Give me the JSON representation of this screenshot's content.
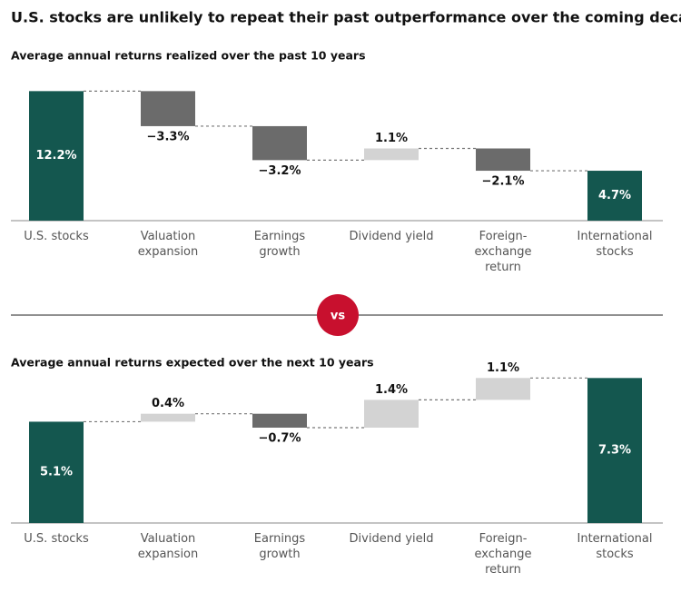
{
  "title": "U.S. stocks are unlikely to repeat their past outperformance over the coming decade",
  "separator_label": "vs",
  "chart_data": [
    {
      "type": "waterfall",
      "title": "Average annual returns realized over the past 10 years",
      "categories": [
        "U.S. stocks",
        "Valuation expansion",
        "Earnings growth",
        "Dividend yield",
        "Foreign-exchange return",
        "International stocks"
      ],
      "values": [
        12.2,
        -3.3,
        -3.2,
        1.1,
        -2.1,
        4.7
      ],
      "value_labels": [
        "12.2%",
        "−3.3%",
        "−3.2%",
        "1.1%",
        "−2.1%",
        "4.7%"
      ],
      "total_color": "#14574f",
      "increase_color": "#d3d3d3",
      "decrease_color": "#6b6b6b",
      "ylim": [
        0,
        13
      ]
    },
    {
      "type": "waterfall",
      "title": "Average annual returns expected over the next 10 years",
      "categories": [
        "U.S. stocks",
        "Valuation expansion",
        "Earnings growth",
        "Dividend yield",
        "Foreign-exchange return",
        "International stocks"
      ],
      "values": [
        5.1,
        0.4,
        -0.7,
        1.4,
        1.1,
        7.3
      ],
      "value_labels": [
        "5.1%",
        "0.4%",
        "−0.7%",
        "1.4%",
        "1.1%",
        "7.3%"
      ],
      "total_color": "#14574f",
      "increase_color": "#d3d3d3",
      "decrease_color": "#6b6b6b",
      "ylim": [
        0,
        8
      ]
    }
  ]
}
